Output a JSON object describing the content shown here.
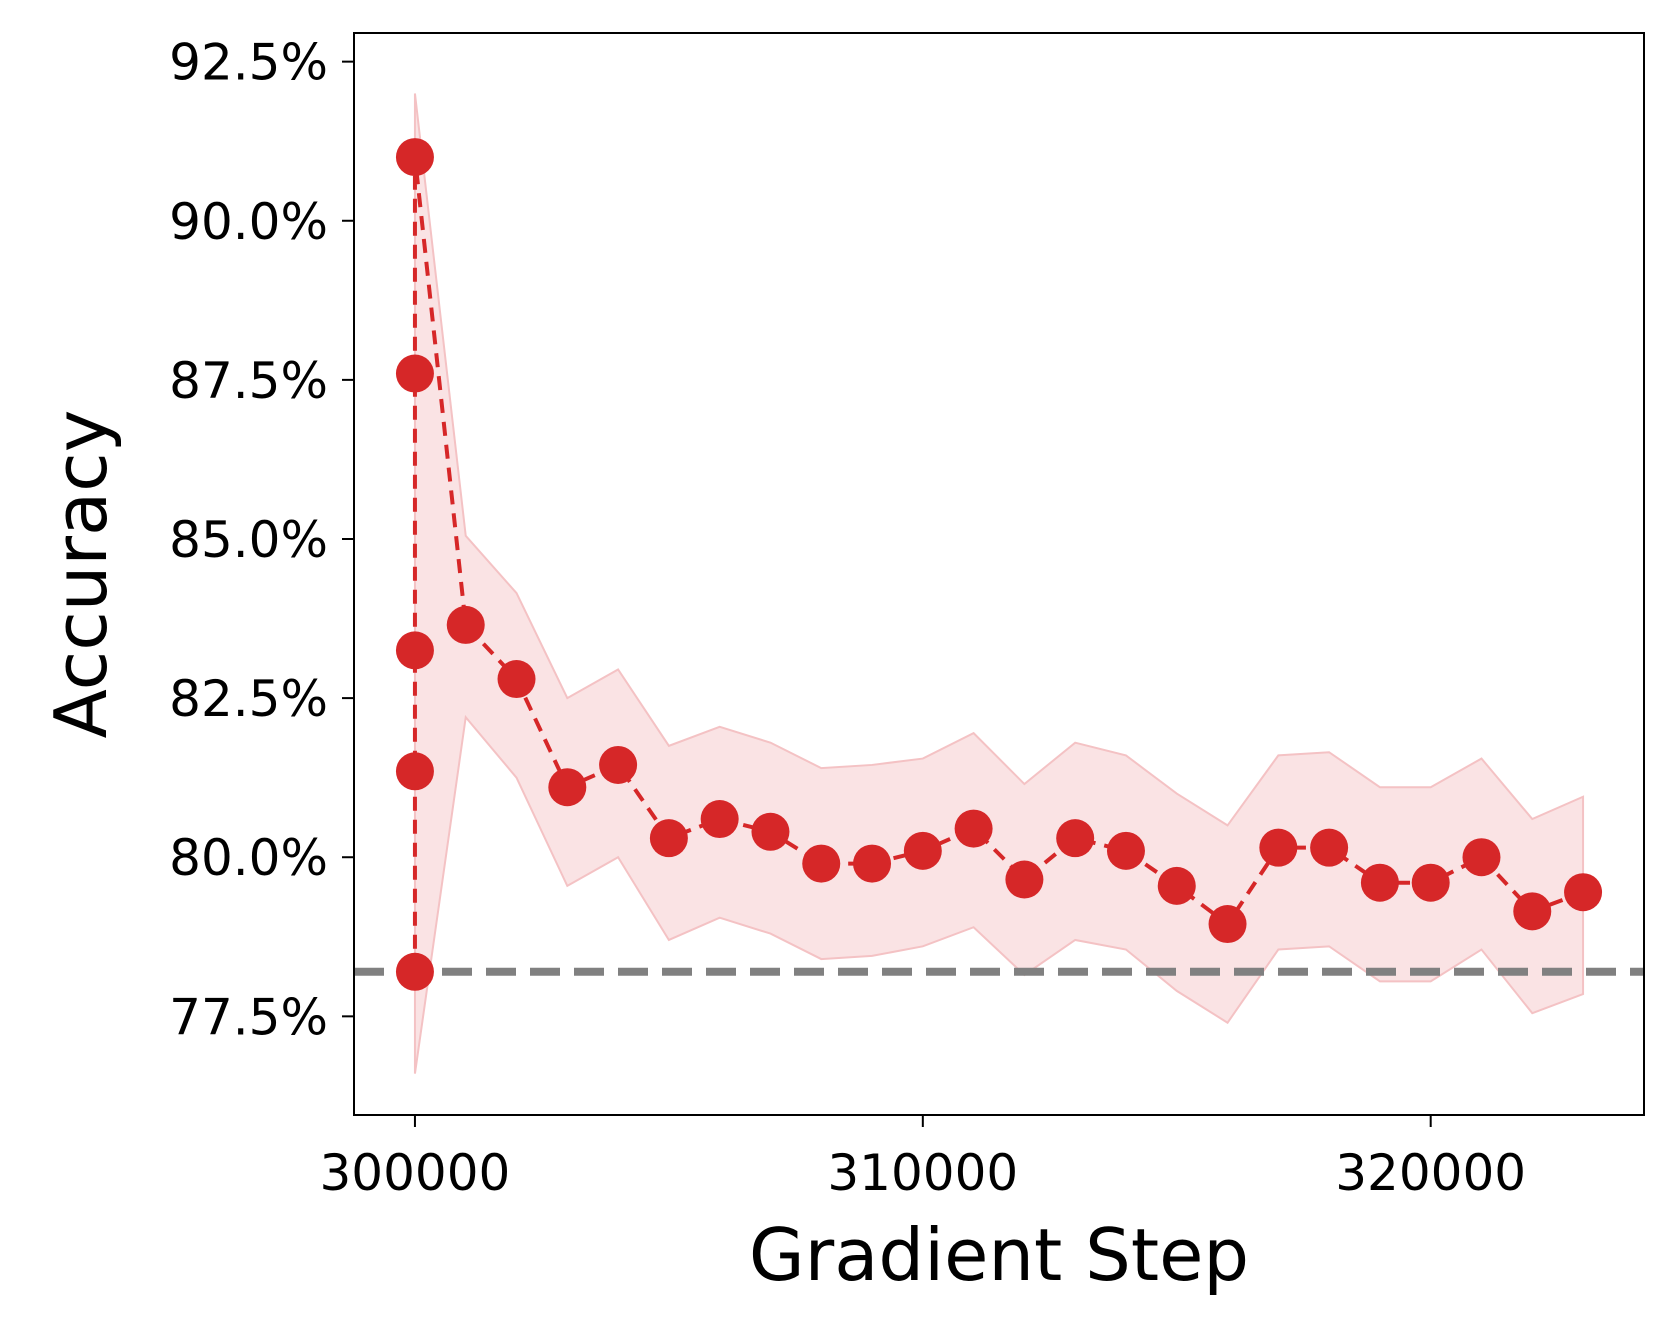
{
  "chart_data": {
    "type": "line",
    "xlabel": "Gradient Step",
    "ylabel": "Accuracy",
    "xlim": [
      298800,
      324200
    ],
    "ylim": [
      75.95,
      92.95
    ],
    "x_ticks": [
      300000,
      310000,
      320000
    ],
    "x_tick_labels": [
      "300000",
      "310000",
      "320000"
    ],
    "y_ticks": [
      77.5,
      80.0,
      82.5,
      85.0,
      87.5,
      90.0,
      92.5
    ],
    "y_tick_labels": [
      "77.5%",
      "80.0%",
      "82.5%",
      "85.0%",
      "87.5%",
      "90.0%",
      "92.5%"
    ],
    "grid": false,
    "legend": "none",
    "series": [
      {
        "color": "#d62728",
        "band_color": "#f4c2c4",
        "line_style": "dashed",
        "marker": "circle",
        "x": [
          300000,
          300000,
          300000,
          300000,
          300000,
          301000,
          302000,
          303000,
          304000,
          305000,
          306000,
          307000,
          308000,
          309000,
          310000,
          311000,
          312000,
          313000,
          314000,
          315000,
          316000,
          317000,
          318000,
          319000,
          320000,
          321000,
          322000,
          323000
        ],
        "y": [
          78.2,
          81.35,
          83.25,
          87.6,
          91.0,
          83.65,
          82.8,
          81.1,
          81.45,
          80.3,
          80.6,
          80.4,
          79.9,
          79.9,
          80.1,
          80.45,
          79.65,
          80.3,
          80.1,
          79.55,
          78.95,
          80.15,
          80.15,
          79.6,
          79.6,
          80.0,
          79.15,
          79.45
        ],
        "band_x": [
          300000,
          301000,
          302000,
          303000,
          304000,
          305000,
          306000,
          307000,
          308000,
          309000,
          310000,
          311000,
          312000,
          313000,
          314000,
          315000,
          316000,
          317000,
          318000,
          319000,
          320000,
          321000,
          322000,
          323000
        ],
        "band_lower": [
          76.6,
          82.2,
          81.25,
          79.55,
          80.0,
          78.7,
          79.05,
          78.8,
          78.4,
          78.45,
          78.6,
          78.9,
          78.15,
          78.7,
          78.55,
          77.9,
          77.4,
          78.55,
          78.6,
          78.05,
          78.05,
          78.55,
          77.55,
          77.85
        ],
        "band_upper": [
          92.0,
          85.05,
          84.15,
          82.5,
          82.95,
          81.75,
          82.05,
          81.8,
          81.4,
          81.45,
          81.55,
          81.95,
          81.15,
          81.8,
          81.6,
          81.0,
          80.5,
          81.6,
          81.65,
          81.1,
          81.1,
          81.55,
          80.6,
          80.95
        ]
      }
    ],
    "reference_line": {
      "y": 78.2,
      "color": "#808080",
      "line_style": "dashed"
    }
  }
}
